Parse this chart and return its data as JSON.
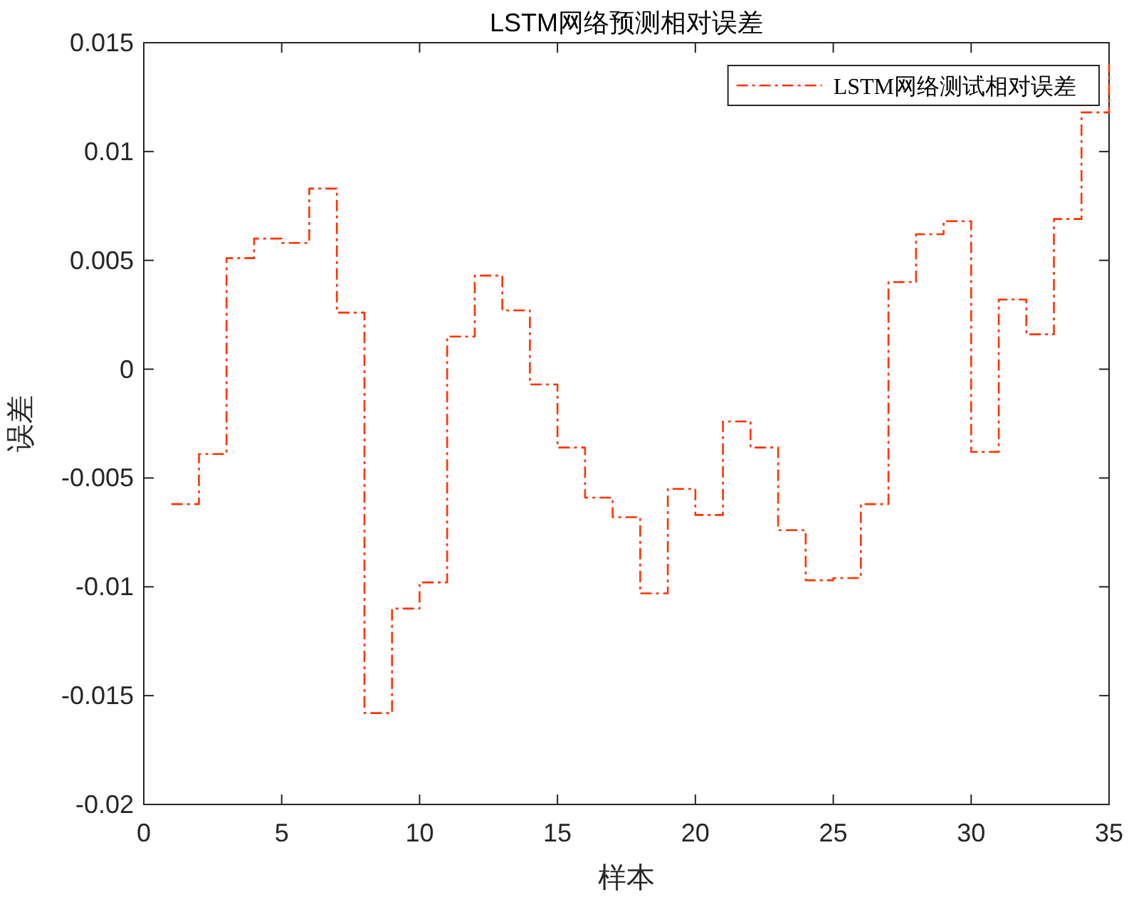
{
  "chart_data": {
    "type": "step",
    "title": "LSTM网络预测相对误差",
    "xlabel": "样本",
    "ylabel": "误差",
    "x": [
      1,
      2,
      3,
      4,
      5,
      6,
      7,
      8,
      9,
      10,
      11,
      12,
      13,
      14,
      15,
      16,
      17,
      18,
      19,
      20,
      21,
      22,
      23,
      24,
      25,
      26,
      27,
      28,
      29,
      30,
      31,
      32,
      33,
      34,
      35
    ],
    "series": [
      {
        "name": "LSTM网络测试相对误差",
        "color": "#ff3300",
        "line_style": "dashdot",
        "values": [
          -0.0062,
          -0.0039,
          0.0051,
          0.006,
          0.0058,
          0.0083,
          0.0026,
          -0.0158,
          -0.011,
          -0.0098,
          0.0015,
          0.0043,
          0.0027,
          -0.0007,
          -0.0036,
          -0.0059,
          -0.0068,
          -0.0103,
          -0.0055,
          -0.0067,
          -0.0024,
          -0.0036,
          -0.0074,
          -0.0097,
          -0.0096,
          -0.0062,
          0.004,
          0.0062,
          0.0068,
          -0.0038,
          0.0032,
          0.0016,
          0.0069,
          0.0118,
          0.014
        ]
      }
    ],
    "xlim": [
      0,
      35
    ],
    "xticks": [
      0,
      5,
      10,
      15,
      20,
      25,
      30,
      35
    ],
    "ylim": [
      -0.02,
      0.015
    ],
    "yticks": [
      -0.02,
      -0.015,
      -0.01,
      -0.005,
      0,
      0.005,
      0.01,
      0.015
    ],
    "grid": false,
    "legend": "top right",
    "marker": "none"
  }
}
